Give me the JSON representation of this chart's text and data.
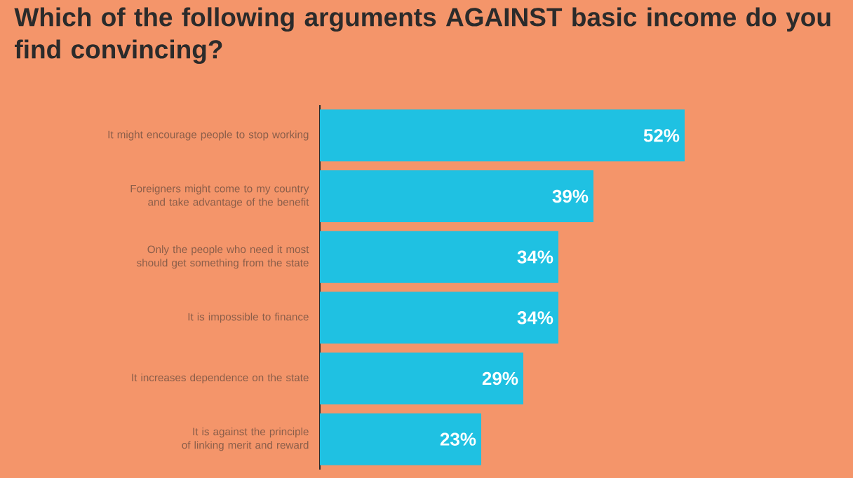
{
  "chart_data": {
    "type": "bar",
    "orientation": "horizontal",
    "title": "Which of the following arguments AGAINST basic income do you find convincing?",
    "categories": [
      "It might encourage people to stop working",
      "Foreigners might come to my country and take advantage of the benefit",
      "Only the people who need it most should get something from the state",
      "It is impossible to finance",
      "It increases dependence on the state",
      "It is against the principle of linking merit and reward"
    ],
    "values": [
      52,
      39,
      34,
      34,
      29,
      23
    ],
    "value_labels": [
      "52%",
      "39%",
      "34%",
      "34%",
      "29%",
      "23%"
    ],
    "color": "#1fc1e2"
  }
}
